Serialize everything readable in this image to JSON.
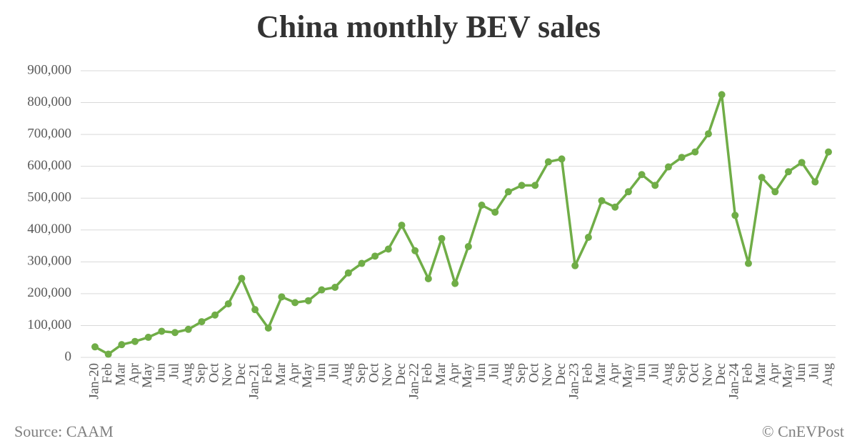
{
  "chart_data": {
    "type": "line",
    "title": "China monthly BEV sales",
    "categories": [
      "Jan-20",
      "Feb",
      "Mar",
      "Apr",
      "May",
      "Jun",
      "Jul",
      "Aug",
      "Sep",
      "Oct",
      "Nov",
      "Dec",
      "Jan-21",
      "Feb",
      "Mar",
      "Apr",
      "May",
      "Jun",
      "Jul",
      "Aug",
      "Sep",
      "Oct",
      "Nov",
      "Dec",
      "Jan-22",
      "Feb",
      "Mar",
      "Apr",
      "May",
      "Jun",
      "Jul",
      "Aug",
      "Sep",
      "Oct",
      "Nov",
      "Dec",
      "Jan-23",
      "Feb",
      "Mar",
      "Apr",
      "May",
      "Jun",
      "Jul",
      "Aug",
      "Sep",
      "Oct",
      "Nov",
      "Dec",
      "Jan-24",
      "Feb",
      "Mar",
      "Apr",
      "May",
      "Jun",
      "Jul",
      "Aug"
    ],
    "series": [
      {
        "name": "BEV sales",
        "color": "#70ad47",
        "values": [
          33000,
          10000,
          40000,
          50000,
          63000,
          82000,
          78000,
          88000,
          112000,
          133000,
          168000,
          248000,
          150000,
          92000,
          190000,
          172000,
          178000,
          212000,
          220000,
          265000,
          295000,
          318000,
          340000,
          415000,
          335000,
          247000,
          373000,
          232000,
          348000,
          478000,
          456000,
          520000,
          540000,
          540000,
          614000,
          623000,
          288000,
          377000,
          492000,
          472000,
          520000,
          574000,
          540000,
          598000,
          628000,
          645000,
          702000,
          825000,
          446000,
          295000,
          565000,
          520000,
          583000,
          612000,
          551000,
          645000
        ]
      }
    ],
    "ylim": [
      0,
      900000
    ],
    "yticks": [
      0,
      {
        "value": 100000,
        "label": "100,000"
      },
      {
        "value": 200000,
        "label": "200,000"
      },
      {
        "value": 300000,
        "label": "300,000"
      },
      {
        "value": 400000,
        "label": "400,000"
      },
      {
        "value": 500000,
        "label": "500,000"
      },
      {
        "value": 600000,
        "label": "600,000"
      },
      {
        "value": 700000,
        "label": "700,000"
      },
      {
        "value": 800000,
        "label": "800,000"
      },
      {
        "value": 900000,
        "label": "900,000"
      }
    ],
    "grid": true,
    "source": "Source: CAAM",
    "credit": "© CnEVPost"
  }
}
